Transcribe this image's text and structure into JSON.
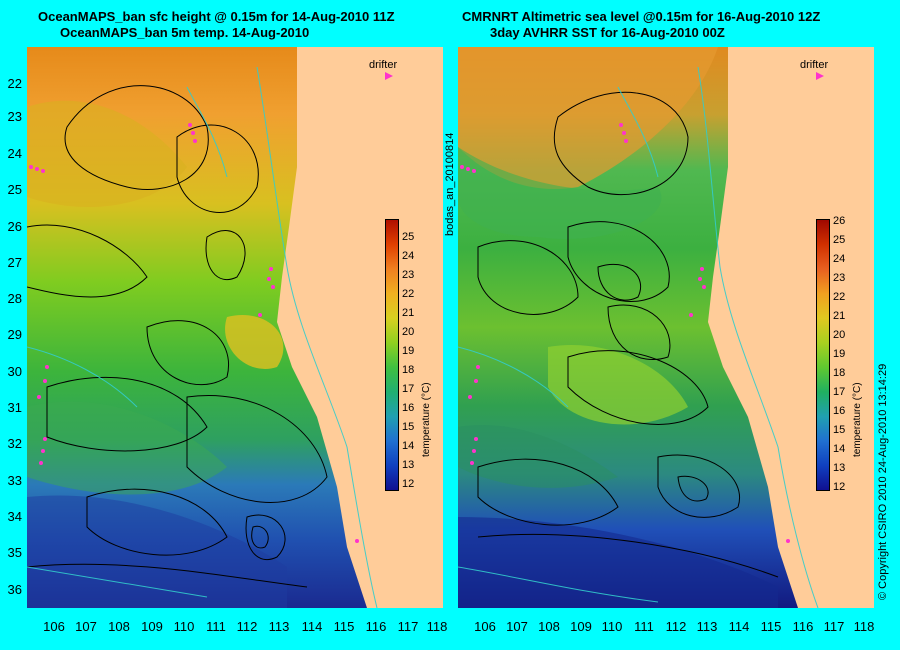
{
  "left_panel": {
    "title_line1": "OceanMAPS_ban sfc height @ 0.15m for 14-Aug-2010 11Z",
    "title_line2": "OceanMAPS_ban 5m temp. 14-Aug-2010",
    "legend_label": "drifter"
  },
  "right_panel": {
    "title_line1": "CMRNRT Altimetric sea level  @0.15m  for 16-Aug-2010 12Z",
    "title_line2": "3day AVHRR SST for 16-Aug-2010 00Z",
    "legend_label": "drifter"
  },
  "side_label": "bodas_an_20100814",
  "copyright": "© Copyright CSIRO 2010   24-Aug-2010 13:14:29",
  "colorbar": {
    "label": "temperature (°C)",
    "ticks": [
      "25",
      "24",
      "23",
      "22",
      "21",
      "20",
      "19",
      "18",
      "17",
      "16",
      "15",
      "14",
      "13",
      "12"
    ],
    "right_ticks": [
      "26",
      "25",
      "24",
      "23",
      "22",
      "21",
      "20",
      "19",
      "18",
      "17",
      "16",
      "15",
      "14",
      "13",
      "12"
    ]
  },
  "axes": {
    "lat_labels": [
      "22",
      "23",
      "24",
      "25",
      "26",
      "27",
      "28",
      "29",
      "30",
      "31",
      "32",
      "33",
      "34",
      "35",
      "36"
    ],
    "lon_labels": [
      "106",
      "107",
      "108",
      "109",
      "110",
      "111",
      "112",
      "113",
      "114",
      "115",
      "116",
      "117",
      "118"
    ]
  },
  "colors": {
    "background": "#00ffff",
    "land": "#ffcc99",
    "drifter": "#ff33cc",
    "contour": "#000000",
    "current_lines": "#33cccc"
  }
}
